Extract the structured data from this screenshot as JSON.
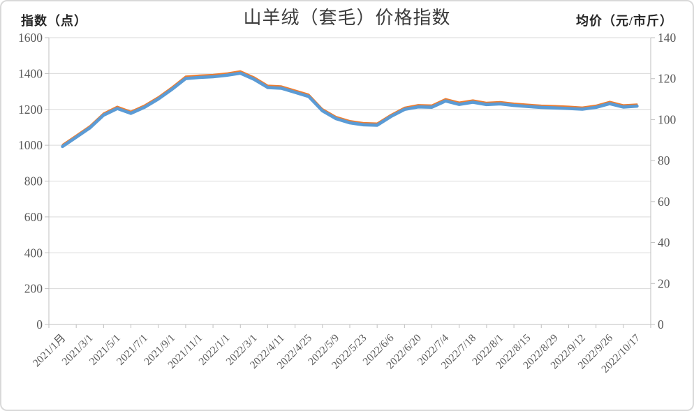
{
  "chart": {
    "title": "山羊绒（套毛）价格指数",
    "left_axis_title": "指数（点）",
    "right_axis_title": "均价（元/市斤）"
  },
  "chart_data": {
    "type": "line",
    "title": "山羊绒（套毛）价格指数",
    "grid": "horizontal",
    "legend": "none",
    "points_per_label": 2,
    "x_labels": [
      "2021/1月",
      "2021/3/1",
      "2021/5/1",
      "2021/7/1",
      "2021/9/1",
      "2021/11/1",
      "2022/1/1",
      "2022/3/1",
      "2022/4/11",
      "2022/4/25",
      "2022/5/9",
      "2022/5/23",
      "2022/6/6",
      "2022/6/20",
      "2022/7/4",
      "2022/7/18",
      "2022/8/1",
      "2022/8/15",
      "2022/8/29",
      "2022/9/12",
      "2022/9/26",
      "2022/10/17"
    ],
    "left_axis": {
      "title": "指数（点）",
      "range": [
        0,
        1600
      ],
      "ticks": [
        1600,
        1400,
        1200,
        1000,
        800,
        600,
        400,
        200,
        0
      ]
    },
    "right_axis": {
      "title": "均价（元/市斤）",
      "range": [
        0,
        140
      ],
      "ticks": [
        140,
        120,
        100,
        80,
        60,
        40,
        20,
        0
      ]
    },
    "series": [
      {
        "name": "指数",
        "axis": "left",
        "color": "#5B9BD5",
        "values": [
          993,
          1045,
          1097,
          1168,
          1205,
          1178,
          1212,
          1258,
          1312,
          1372,
          1378,
          1382,
          1390,
          1402,
          1368,
          1322,
          1318,
          1295,
          1272,
          1192,
          1148,
          1125,
          1114,
          1112,
          1160,
          1200,
          1214,
          1212,
          1247,
          1228,
          1240,
          1227,
          1231,
          1222,
          1216,
          1211,
          1208,
          1205,
          1201,
          1211,
          1232,
          1213,
          1218
        ]
      },
      {
        "name": "均价",
        "axis": "right",
        "color": "#ED7D31",
        "values": [
          87.3,
          91.8,
          96.4,
          102.6,
          105.9,
          103.5,
          106.5,
          110.5,
          115.3,
          120.6,
          121.1,
          121.4,
          122.1,
          123.2,
          120.2,
          116.2,
          115.8,
          113.8,
          111.8,
          104.7,
          100.9,
          98.9,
          97.9,
          97.7,
          101.9,
          105.4,
          106.7,
          106.5,
          109.6,
          107.9,
          109.0,
          107.8,
          108.2,
          107.4,
          106.9,
          106.4,
          106.2,
          105.9,
          105.5,
          106.4,
          108.3,
          106.6,
          107.0
        ]
      }
    ],
    "colors": {
      "index_line": "#5B9BD5",
      "price_line": "#ED7D31",
      "gridline": "#d9d9d9",
      "axis_line": "#bfbfbf",
      "tick_label": "#595959",
      "title_text": "#3b3b3b"
    }
  }
}
